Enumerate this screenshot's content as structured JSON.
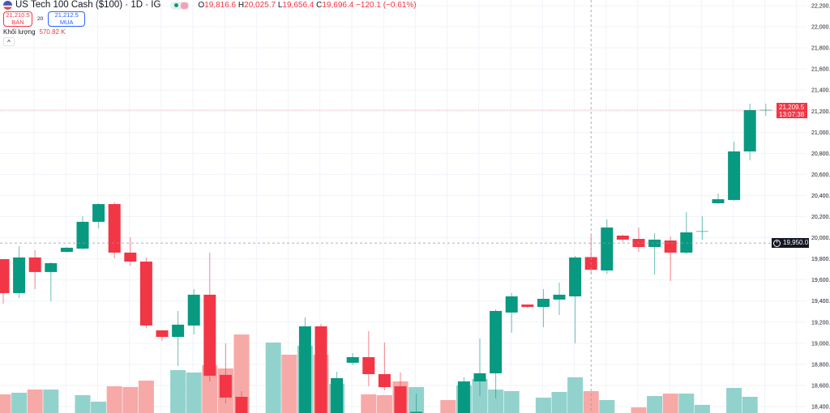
{
  "header": {
    "symbol_title": "US Tech 100 Cash ($100) · 1D · IG",
    "ohlc": {
      "o_label": "O",
      "o": "19,816.6",
      "h_label": "H",
      "h": "20,025.7",
      "l_label": "L",
      "l": "19,656.4",
      "c_label": "C",
      "c": "19,696.4",
      "change": "−120.1 (−0.61%)"
    },
    "sell": {
      "price": "21,210.5",
      "label": "BÁN"
    },
    "spread": "20",
    "buy": {
      "price": "21,212.5",
      "label": "MUA"
    },
    "volume": {
      "label": "Khối lượng",
      "value": "570.82 K"
    },
    "collapse": "^"
  },
  "price_axis": {
    "current_price": "21,209.5",
    "countdown": "13:07:38",
    "crosshair_price": "19,950.0"
  },
  "colors": {
    "up": "#089981",
    "down": "#f23645",
    "up_volume": "#92d2cc",
    "down_volume": "#f7a9a7"
  },
  "chart_data": {
    "type": "candlestick",
    "ylim": [
      18400,
      22200
    ],
    "yticks": [
      "22,200.0",
      "22,000.0",
      "21,800.0",
      "21,600.0",
      "21,400.0",
      "21,200.0",
      "21,000.0",
      "20,800.0",
      "20,600.0",
      "20,400.0",
      "20,200.0",
      "20,000.0",
      "19,800.0",
      "19,600.0",
      "19,400.0",
      "19,200.0",
      "19,000.0",
      "18,800.0",
      "18,600.0",
      "18,400.0"
    ],
    "ytick_values": [
      22200,
      22000,
      21800,
      21600,
      21400,
      21200,
      21000,
      20800,
      20600,
      20400,
      20200,
      20000,
      19800,
      19600,
      19400,
      19200,
      19000,
      18800,
      18600,
      18400
    ],
    "grid": true,
    "crosshair": {
      "candle_index": 37,
      "price": 19950
    },
    "candles": [
      {
        "o": 19797,
        "h": 19797,
        "l": 19375,
        "c": 19475,
        "v": 541
      },
      {
        "o": 19475,
        "h": 19920,
        "l": 19429,
        "c": 19813,
        "v": 556
      },
      {
        "o": 19813,
        "h": 19882,
        "l": 19513,
        "c": 19675,
        "v": 585
      },
      {
        "o": 19675,
        "h": 19767,
        "l": 19398,
        "c": 19759,
        "v": 585
      },
      {
        "o": 19866,
        "h": 19912,
        "l": 19859,
        "c": 19905,
        "v": null
      },
      {
        "o": 19897,
        "h": 20204,
        "l": 19889,
        "c": 20151,
        "v": 534
      },
      {
        "o": 20151,
        "h": 20327,
        "l": 20089,
        "c": 20319,
        "v": 474
      },
      {
        "o": 20319,
        "h": 20335,
        "l": 19805,
        "c": 19859,
        "v": 615
      },
      {
        "o": 19859,
        "h": 20005,
        "l": 19736,
        "c": 19774,
        "v": 608
      },
      {
        "o": 19774,
        "h": 19813,
        "l": 19145,
        "c": 19168,
        "v": 667
      },
      {
        "o": 19122,
        "h": 19122,
        "l": 19022,
        "c": 19060,
        "v": null
      },
      {
        "o": 19060,
        "h": 19306,
        "l": 18784,
        "c": 19176,
        "v": 763
      },
      {
        "o": 19168,
        "h": 19513,
        "l": 19083,
        "c": 19460,
        "v": 741
      },
      {
        "o": 19460,
        "h": 19859,
        "l": 18638,
        "c": 18692,
        "v": 808
      },
      {
        "o": 18700,
        "h": 18999,
        "l": 18431,
        "c": 18485,
        "v": 778
      },
      {
        "o": 18492,
        "h": 18546,
        "l": 18250,
        "c": 18300,
        "v": 1089
      },
      {
        "o": null,
        "h": null,
        "l": null,
        "c": null,
        "v": null
      },
      {
        "o": null,
        "h": null,
        "l": null,
        "c": null,
        "v": 1015,
        "up": true
      },
      {
        "o": null,
        "h": null,
        "l": null,
        "c": null,
        "v": 904,
        "up": false
      },
      {
        "o": 18300,
        "h": 19245,
        "l": 18250,
        "c": 19160,
        "v": 986
      },
      {
        "o": 19160,
        "h": 19183,
        "l": 18250,
        "c": 18300,
        "v": 904
      },
      {
        "o": 18300,
        "h": 18730,
        "l": 18250,
        "c": 18669,
        "v": 637
      },
      {
        "o": 18815,
        "h": 18907,
        "l": 18792,
        "c": 18868,
        "v": null
      },
      {
        "o": 18868,
        "h": 19114,
        "l": 18592,
        "c": 18707,
        "v": 541
      },
      {
        "o": 18707,
        "h": 19007,
        "l": 18554,
        "c": 18584,
        "v": 534
      },
      {
        "o": 18592,
        "h": 18723,
        "l": 18250,
        "c": 18300,
        "v": 660
      },
      {
        "o": 18200,
        "h": 18523,
        "l": 18150,
        "c": 18350,
        "v": 608
      },
      {
        "o": null,
        "h": null,
        "l": null,
        "c": null,
        "v": null
      },
      {
        "o": null,
        "h": null,
        "l": null,
        "c": null,
        "v": 489,
        "up": false
      },
      {
        "o": 18300,
        "h": 18677,
        "l": 18250,
        "c": 18638,
        "v": 622
      },
      {
        "o": 18638,
        "h": 19045,
        "l": 18500,
        "c": 18715,
        "v": 682
      },
      {
        "o": 18715,
        "h": 19321,
        "l": 18477,
        "c": 19306,
        "v": 585
      },
      {
        "o": 19291,
        "h": 19475,
        "l": 19099,
        "c": 19444,
        "v": 571
      },
      {
        "o": 19367,
        "h": 19367,
        "l": 19337,
        "c": 19344,
        "v": null
      },
      {
        "o": 19344,
        "h": 19513,
        "l": 19152,
        "c": 19421,
        "v": 511
      },
      {
        "o": 19414,
        "h": 19575,
        "l": 19268,
        "c": 19460,
        "v": 563
      },
      {
        "o": 19444,
        "h": 19828,
        "l": 18999,
        "c": 19813,
        "v": 697
      },
      {
        "o": 19816.6,
        "h": 20025.7,
        "l": 19656.4,
        "c": 19696.4,
        "v": 570.82
      },
      {
        "o": 19690,
        "h": 20174,
        "l": 19659,
        "c": 20097,
        "v": 489
      },
      {
        "o": 20020,
        "h": 20028,
        "l": 19959,
        "c": 19982,
        "v": null
      },
      {
        "o": 19989,
        "h": 20097,
        "l": 19866,
        "c": 19912,
        "v": 422
      },
      {
        "o": 19912,
        "h": 20043,
        "l": 19651,
        "c": 19982,
        "v": 526
      },
      {
        "o": 19974,
        "h": 20012,
        "l": 19590,
        "c": 19859,
        "v": 548
      },
      {
        "o": 19859,
        "h": 20243,
        "l": 19843,
        "c": 20051,
        "v": 548
      },
      {
        "o": 20058,
        "h": 20204,
        "l": 19982,
        "c": 20060,
        "v": 445
      },
      {
        "o": 20327,
        "h": 20419,
        "l": 20319,
        "c": 20365,
        "v": null
      },
      {
        "o": 20358,
        "h": 20911,
        "l": 20350,
        "c": 20818,
        "v": 600
      },
      {
        "o": 20818,
        "h": 21271,
        "l": 20734,
        "c": 21210,
        "v": 519
      },
      {
        "o": 21209.5,
        "h": 21271,
        "l": 21156,
        "c": 21209.5,
        "v": null
      }
    ]
  }
}
